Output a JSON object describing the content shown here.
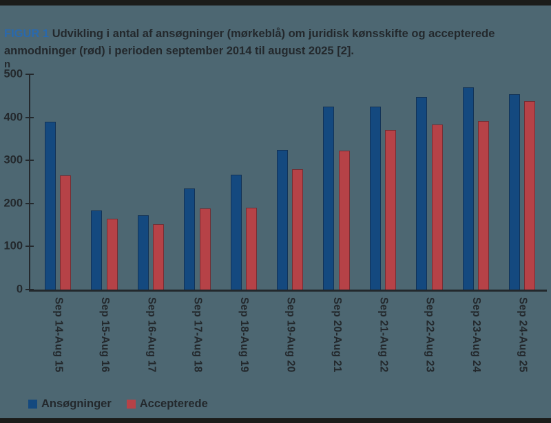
{
  "page": {
    "background_color": "#4d6772",
    "rule_color": "#1b1c1a",
    "text_color": "#23282c"
  },
  "title": {
    "label": "FIGUR 1",
    "label_color": "#2969ae",
    "line1": "Udvikling i antal af ansøgninger (mørkeblå) om juridisk kønsskifte og accepterede",
    "line2": "anmodninger (rød) i perioden september 2014 til august 2025 [2]."
  },
  "chart_data": {
    "type": "bar",
    "unit_label": "n",
    "ylabel": "n",
    "xlabel": "",
    "ylim": [
      0,
      500
    ],
    "yticks": [
      0,
      100,
      200,
      300,
      400,
      500
    ],
    "grid": false,
    "legend_position": "bottom",
    "categories": [
      "Sep 14-Aug 15",
      "Sep 15-Aug 16",
      "Sep 16-Aug 17",
      "Sep 17-Aug 18",
      "Sep 18-Aug 19",
      "Sep 19-Aug 20",
      "Sep 20-Aug 21",
      "Sep 21-Aug 22",
      "Sep 22-Aug 23",
      "Sep 23-Aug 24",
      "Sep 24-Aug 25"
    ],
    "series": [
      {
        "name": "Ansøgninger",
        "color": "#14497f",
        "values": [
          390,
          184,
          172,
          235,
          267,
          325,
          425,
          425,
          448,
          470,
          453
        ]
      },
      {
        "name": "Accepterede",
        "color": "#b64247",
        "values": [
          265,
          165,
          151,
          188,
          190,
          280,
          323,
          371,
          383,
          392,
          438
        ]
      }
    ]
  }
}
